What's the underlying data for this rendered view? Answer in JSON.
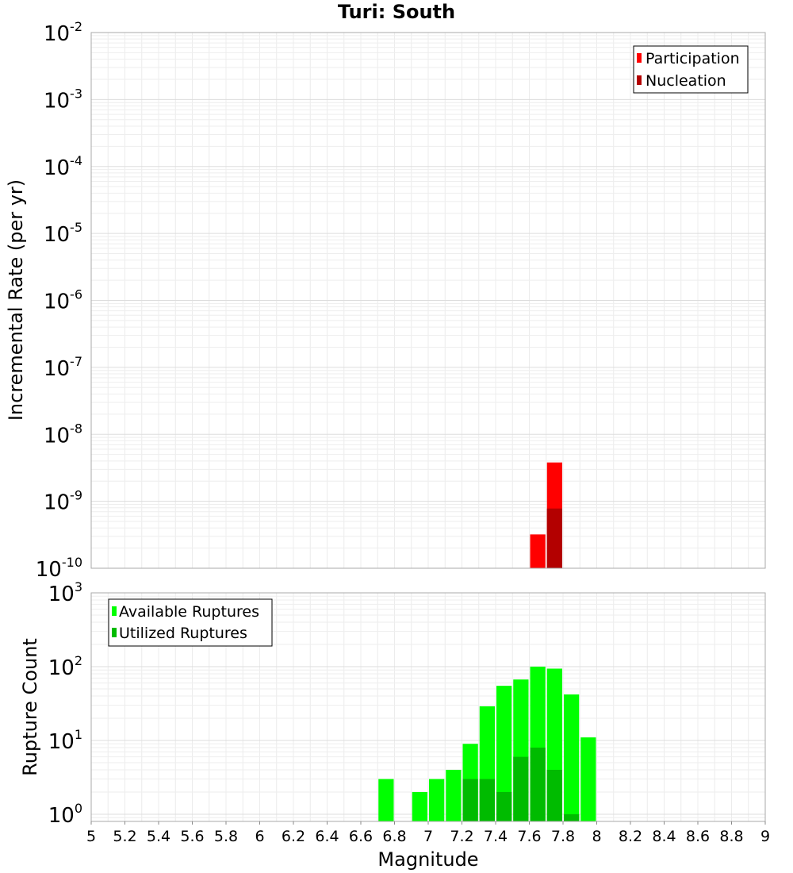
{
  "chart_data": [
    {
      "type": "bar",
      "title": "Turi: South",
      "xlabel": "",
      "ylabel": "Incremental Rate (per yr)",
      "yscale": "log",
      "xlim": [
        5,
        9
      ],
      "ylim": [
        1e-10,
        0.01
      ],
      "ytick_labels": [
        {
          "base": "10",
          "exp": "-2"
        },
        {
          "base": "10",
          "exp": "-3"
        },
        {
          "base": "10",
          "exp": "-4"
        },
        {
          "base": "10",
          "exp": "-5"
        },
        {
          "base": "10",
          "exp": "-6"
        },
        {
          "base": "10",
          "exp": "-7"
        },
        {
          "base": "10",
          "exp": "-8"
        },
        {
          "base": "10",
          "exp": "-9"
        },
        {
          "base": "10",
          "exp": "-10"
        }
      ],
      "bar_width": 0.1,
      "legend_position": "top-right",
      "grid": true,
      "series": [
        {
          "name": "Participation",
          "color": "#ff0000",
          "x": [
            7.65,
            7.75
          ],
          "values": [
            3.2e-10,
            3.8e-09
          ]
        },
        {
          "name": "Nucleation",
          "color": "#b30000",
          "x": [
            7.75
          ],
          "values": [
            7.8e-10
          ]
        }
      ]
    },
    {
      "type": "bar",
      "title": "",
      "xlabel": "Magnitude",
      "ylabel": "Rupture Count",
      "yscale": "log",
      "xlim": [
        5,
        9
      ],
      "ylim": [
        0.8,
        1000
      ],
      "x_tick_labels": [
        "5",
        "5.2",
        "5.4",
        "5.6",
        "5.8",
        "6",
        "6.2",
        "6.4",
        "6.6",
        "6.8",
        "7",
        "7.2",
        "7.4",
        "7.6",
        "7.8",
        "8",
        "8.2",
        "8.4",
        "8.6",
        "8.8",
        "9"
      ],
      "ytick_labels": [
        {
          "base": "10",
          "exp": "3"
        },
        {
          "base": "10",
          "exp": "2"
        },
        {
          "base": "10",
          "exp": "1"
        },
        {
          "base": "10",
          "exp": "0"
        }
      ],
      "bar_width": 0.1,
      "legend_position": "top-left",
      "grid": true,
      "series": [
        {
          "name": "Available Ruptures",
          "color": "#00ff00",
          "x": [
            6.75,
            6.95,
            7.05,
            7.15,
            7.25,
            7.35,
            7.45,
            7.55,
            7.65,
            7.75,
            7.85,
            7.95
          ],
          "values": [
            3,
            2,
            3,
            4,
            9,
            29,
            55,
            67,
            100,
            94,
            42,
            11
          ]
        },
        {
          "name": "Utilized Ruptures",
          "color": "#00bb00",
          "x": [
            7.25,
            7.35,
            7.45,
            7.55,
            7.65,
            7.75,
            7.85
          ],
          "values": [
            3,
            3,
            2,
            6,
            8,
            4,
            1
          ]
        }
      ]
    }
  ]
}
